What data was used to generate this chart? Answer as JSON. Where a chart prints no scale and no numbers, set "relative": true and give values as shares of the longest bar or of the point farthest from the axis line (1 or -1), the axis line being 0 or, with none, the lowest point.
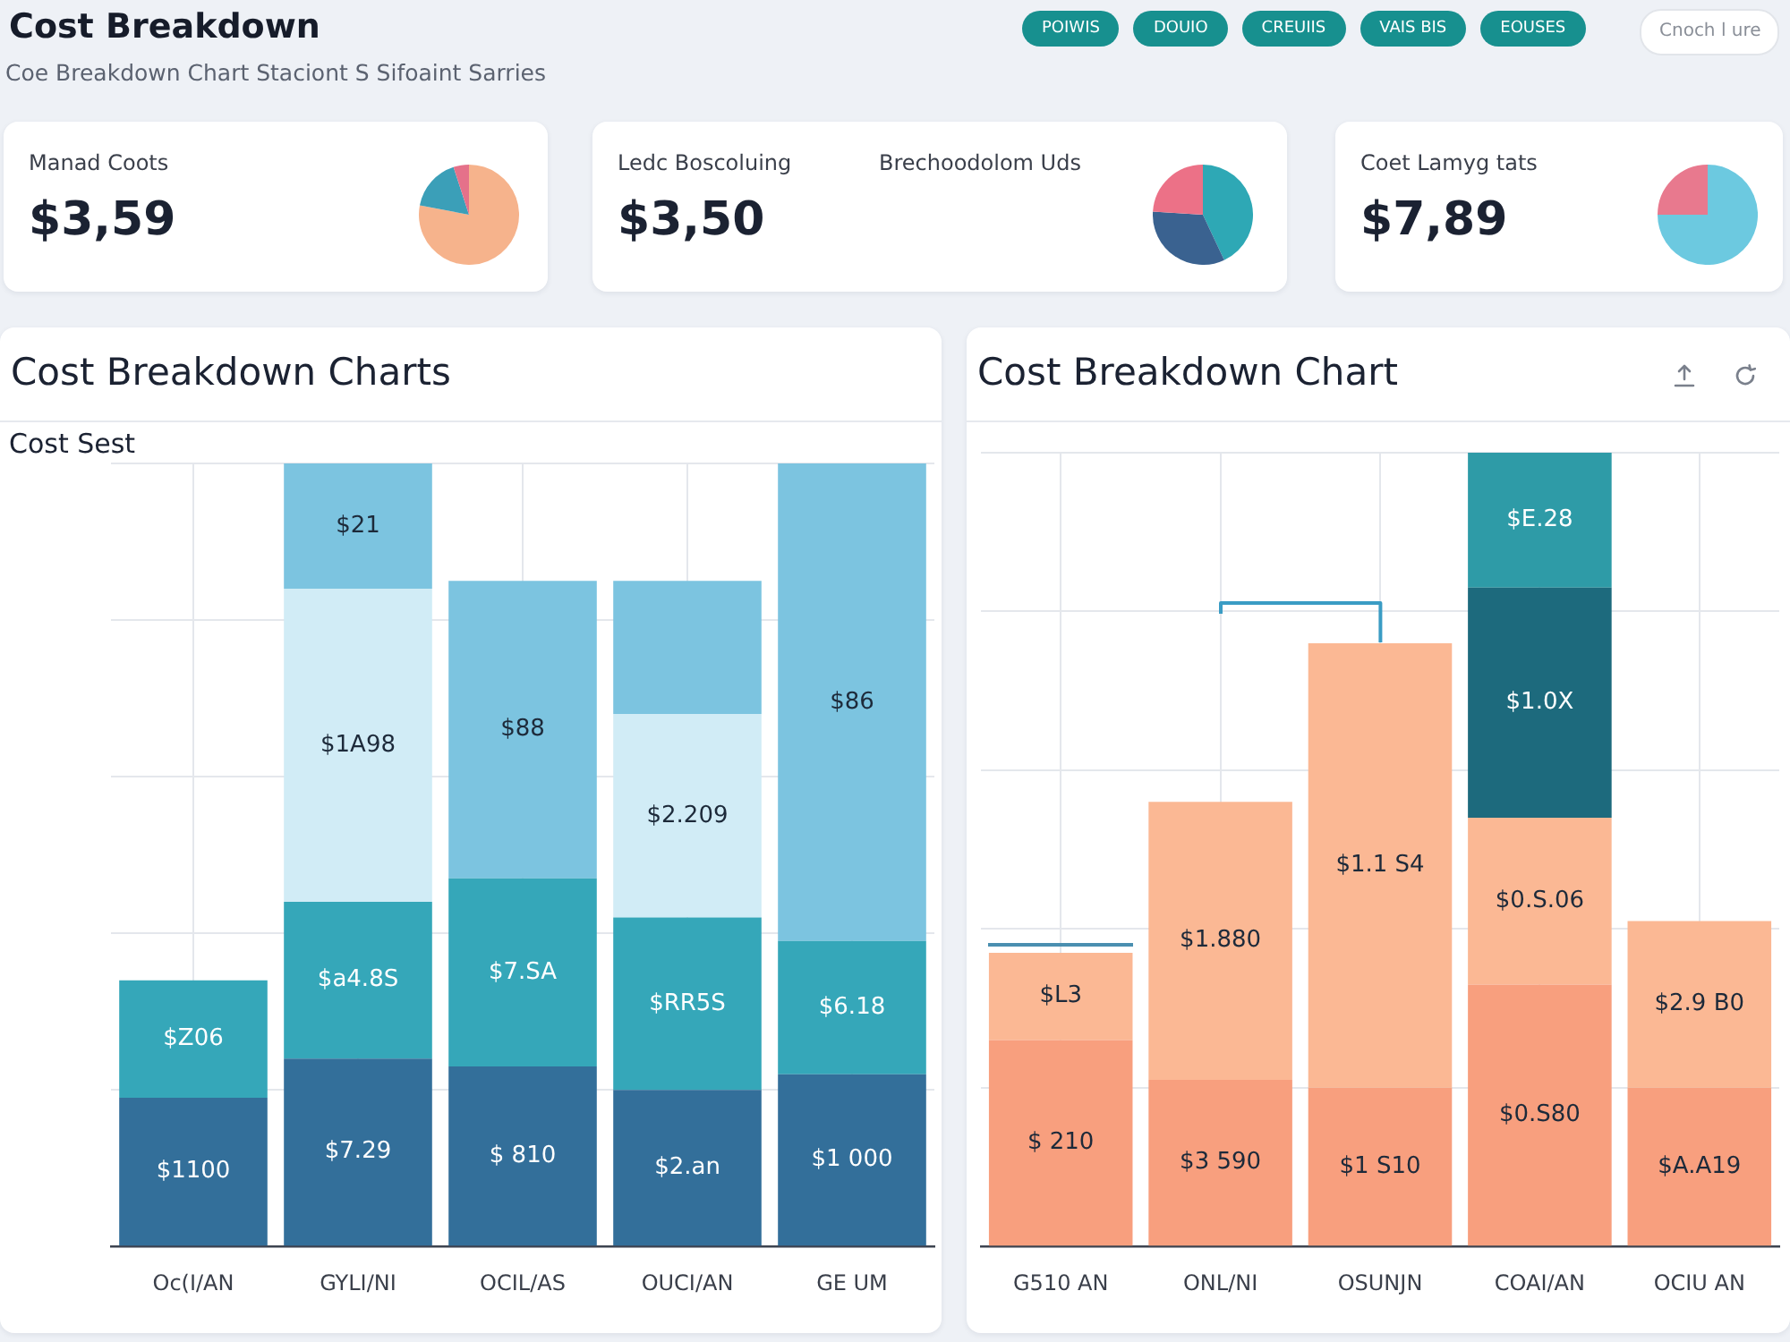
{
  "chart_data": [
    {
      "type": "other",
      "title": "Cost Breakdown",
      "subtitle": "Coe Breakdown Chart Staciont S Sifoaint Sarries",
      "annotations": [
        "POIWIS",
        "DOUIO",
        "CREUIIS",
        "VAIS BIS",
        "EOUSES",
        "Cnoch l ure"
      ]
    },
    {
      "type": "pie",
      "title": "Manad Coots",
      "annotations": [
        "$3,59"
      ],
      "categories": [
        null,
        null,
        null
      ],
      "values": [
        78,
        17,
        5
      ],
      "colors": [
        "#f6b38c",
        "#3b9fb8",
        "#e5718a"
      ]
    },
    {
      "type": "other",
      "title": "Ledc Boscoluing",
      "annotations": [
        "$3,50"
      ]
    },
    {
      "type": "pie",
      "title": "Brechoodolom Uds",
      "categories": [
        null,
        null,
        null
      ],
      "values": [
        43,
        33,
        24
      ],
      "colors": [
        "#2ea8b5",
        "#3a6290",
        "#ec7187"
      ]
    },
    {
      "type": "pie",
      "title": "Coet Lamyg tats",
      "annotations": [
        "$7,89"
      ],
      "categories": [
        null,
        null
      ],
      "values": [
        75,
        25
      ],
      "colors": [
        "#6cc9e0",
        "#e8798e"
      ]
    },
    {
      "type": "bar",
      "title": "Cost Breakdown Charts",
      "ylabel": "Cost Sest",
      "categories": [
        "Oc(I/AN",
        "GYLI/NI",
        "OCIL/AS",
        "OUCI/AN",
        "GE UM"
      ],
      "stacked": true,
      "relative": true,
      "grid": true,
      "series": [
        {
          "color": "#336f9a",
          "values": [
            0.19,
            0.24,
            0.23,
            0.2,
            0.22
          ]
        },
        {
          "color": "#35a7b9",
          "values": [
            0.15,
            0.2,
            0.24,
            0.22,
            0.17
          ]
        },
        {
          "color": "#d1ecf6",
          "values": [
            0,
            0.4,
            0,
            0.26,
            0
          ]
        },
        {
          "color": "#7cc4e0",
          "values": [
            0,
            0.16,
            0.38,
            0.17,
            0.61
          ]
        }
      ],
      "annotations": [
        "$Z06",
        "$1100",
        "$21",
        "$1A98",
        "$a4.8S",
        "$7.29",
        "$88",
        "$7.SA",
        "$ 810",
        "$2.209",
        "$RR5S",
        "$2.an",
        "$86",
        "$6.18",
        "$1 000"
      ]
    },
    {
      "type": "bar",
      "title": "Cost Breakdown Chart",
      "categories": [
        "G510 AN",
        "ONL/NI",
        "OSUNJN",
        "COAI/AN",
        "OCIU AN"
      ],
      "stacked": true,
      "relative": true,
      "grid": true,
      "series": [
        {
          "color": "#f89f7e",
          "values": [
            0.26,
            0.21,
            0.2,
            0.33,
            0.2
          ]
        },
        {
          "color": "#fbb894",
          "values": [
            0.11,
            0.35,
            0.56,
            0.21,
            0.21
          ]
        },
        {
          "color": "#1d6a7d",
          "values": [
            0,
            0,
            0,
            0.29,
            0
          ]
        },
        {
          "color": "#2e9ba7",
          "values": [
            0,
            0,
            0,
            0.17,
            0
          ]
        }
      ],
      "annotations": [
        "$L3",
        "$ 210",
        "$1.880",
        "$3 590",
        "$1.1 S4",
        "$1 S10",
        "$E.28",
        "$1.0X",
        "$0.S.06",
        "$0.S80",
        "$2.9 B0",
        "$A.A19"
      ]
    }
  ]
}
